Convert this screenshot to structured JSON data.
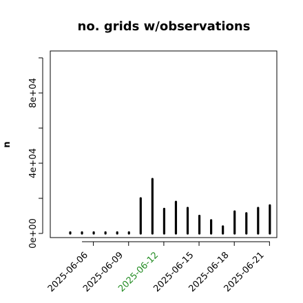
{
  "chart_data": {
    "type": "bar",
    "title": "no. grids w/observations",
    "xlabel": "",
    "ylabel": "n",
    "x": [
      "2025-06-04",
      "2025-06-05",
      "2025-06-06",
      "2025-06-07",
      "2025-06-08",
      "2025-06-09",
      "2025-06-10",
      "2025-06-11",
      "2025-06-12",
      "2025-06-13",
      "2025-06-14",
      "2025-06-15",
      "2025-06-16",
      "2025-06-17",
      "2025-06-18",
      "2025-06-19",
      "2025-06-20",
      "2025-06-21"
    ],
    "values": [
      0,
      0,
      0,
      0,
      0,
      0,
      20000,
      31000,
      14000,
      18000,
      14500,
      10000,
      7500,
      4000,
      12500,
      11500,
      14500,
      16000
    ],
    "ylim": [
      0,
      100000
    ],
    "yticks": [
      0,
      40000,
      80000
    ],
    "ytick_labels": [
      "0e+00",
      "4e+04",
      "8e+04"
    ],
    "xtick_labels": [
      "2025-06-06",
      "2025-06-09",
      "2025-06-12",
      "2025-06-15",
      "2025-06-18",
      "2025-06-21"
    ],
    "xtick_label_colors": [
      "#000000",
      "#000000",
      "#228B22",
      "#000000",
      "#000000",
      "#000000"
    ],
    "bar_color": "#000000",
    "grid": false,
    "legend": "none"
  }
}
